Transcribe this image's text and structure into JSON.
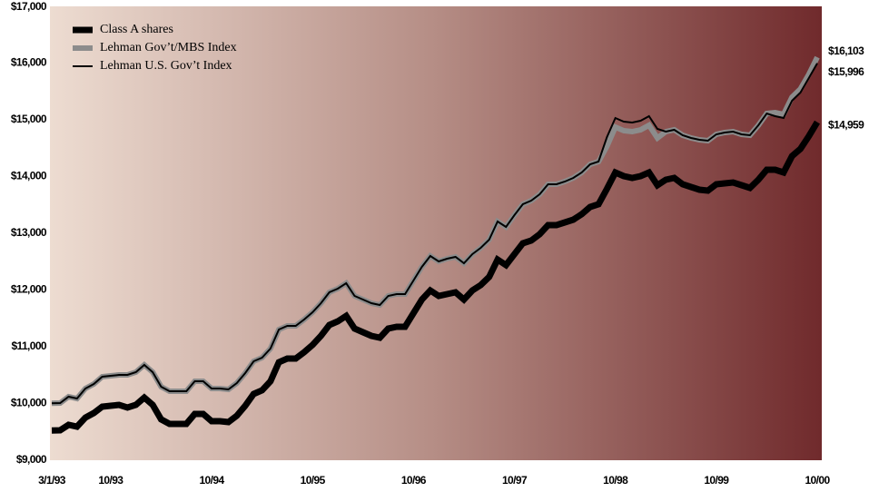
{
  "chart_data": {
    "type": "line",
    "categories": [
      "3/1/93",
      null,
      null,
      null,
      null,
      null,
      null,
      "10/93",
      null,
      null,
      null,
      null,
      null,
      null,
      null,
      null,
      null,
      null,
      null,
      "10/94",
      null,
      null,
      null,
      null,
      null,
      null,
      null,
      null,
      null,
      null,
      null,
      "10/95",
      null,
      null,
      null,
      null,
      null,
      null,
      null,
      null,
      null,
      null,
      null,
      "10/96",
      null,
      null,
      null,
      null,
      null,
      null,
      null,
      null,
      null,
      null,
      null,
      "10/97",
      null,
      null,
      null,
      null,
      null,
      null,
      null,
      null,
      null,
      null,
      null,
      "10/98",
      null,
      null,
      null,
      null,
      null,
      null,
      null,
      null,
      null,
      null,
      null,
      "10/99",
      null,
      null,
      null,
      null,
      null,
      null,
      null,
      null,
      null,
      null,
      null,
      "10/00"
    ],
    "series": [
      {
        "name": "Class A shares",
        "color": "#000000",
        "values": [
          9525,
          9528,
          9624,
          9592,
          9752,
          9832,
          9944,
          9960,
          9976,
          9928,
          9976,
          10104,
          9976,
          9720,
          9640,
          9640,
          9640,
          9816,
          9816,
          9688,
          9688,
          9672,
          9784,
          9960,
          10168,
          10232,
          10392,
          10728,
          10792,
          10792,
          10904,
          11032,
          11192,
          11384,
          11448,
          11544,
          11320,
          11256,
          11192,
          11160,
          11320,
          11352,
          11352,
          11592,
          11832,
          11992,
          11896,
          11928,
          11960,
          11832,
          11992,
          12088,
          12232,
          12536,
          12440,
          12632,
          12824,
          12872,
          12984,
          13144,
          13144,
          13192,
          13240,
          13336,
          13464,
          13512,
          13784,
          14072,
          14008,
          13976,
          14008,
          14072,
          13848,
          13944,
          13976,
          13864,
          13816,
          13768,
          13752,
          13864,
          13880,
          13896,
          13848,
          13800,
          13944,
          14120,
          14120,
          14072,
          14360,
          14488,
          14712,
          14959
        ],
        "value_labels": [
          null,
          null,
          null,
          null,
          null,
          null,
          null,
          null,
          null,
          null,
          null,
          null,
          null,
          null,
          null,
          null,
          null,
          null,
          null,
          null,
          null,
          null,
          null,
          null,
          null,
          null,
          null,
          null,
          null,
          null,
          null,
          null,
          null,
          null,
          null,
          null,
          null,
          null,
          null,
          null,
          null,
          null,
          null,
          null,
          null,
          null,
          null,
          null,
          null,
          null,
          null,
          null,
          null,
          null,
          null,
          null,
          null,
          null,
          null,
          null,
          null,
          null,
          null,
          null,
          null,
          null,
          null,
          null,
          null,
          null,
          null,
          null,
          null,
          null,
          null,
          null,
          null,
          null,
          null,
          null,
          null,
          null,
          null,
          null,
          null,
          null,
          null,
          null,
          null,
          null,
          null,
          "$14,959"
        ]
      },
      {
        "name": "Lehman Gov’t/MBS Index",
        "color": "#8c8c8c",
        "values": [
          10005,
          10008,
          10120,
          10088,
          10264,
          10344,
          10472,
          10488,
          10504,
          10504,
          10552,
          10680,
          10552,
          10296,
          10216,
          10216,
          10216,
          10392,
          10392,
          10264,
          10264,
          10248,
          10360,
          10536,
          10744,
          10808,
          10968,
          11304,
          11368,
          11368,
          11480,
          11608,
          11768,
          11960,
          12024,
          12120,
          11896,
          11832,
          11768,
          11736,
          11896,
          11928,
          11928,
          12168,
          12408,
          12600,
          12504,
          12552,
          12584,
          12472,
          12632,
          12744,
          12888,
          13208,
          13112,
          13320,
          13512,
          13576,
          13688,
          13864,
          13864,
          13912,
          13976,
          14072,
          14216,
          14264,
          14536,
          14872,
          14808,
          14792,
          14824,
          14904,
          14680,
          14792,
          14824,
          14728,
          14680,
          14648,
          14632,
          14744,
          14776,
          14792,
          14744,
          14728,
          14904,
          15112,
          15128,
          15096,
          15400,
          15544,
          15800,
          16103
        ],
        "value_labels": [
          null,
          null,
          null,
          null,
          null,
          null,
          null,
          null,
          null,
          null,
          null,
          null,
          null,
          null,
          null,
          null,
          null,
          null,
          null,
          null,
          null,
          null,
          null,
          null,
          null,
          null,
          null,
          null,
          null,
          null,
          null,
          null,
          null,
          null,
          null,
          null,
          null,
          null,
          null,
          null,
          null,
          null,
          null,
          null,
          null,
          null,
          null,
          null,
          null,
          null,
          null,
          null,
          null,
          null,
          null,
          null,
          null,
          null,
          null,
          null,
          null,
          null,
          null,
          null,
          null,
          null,
          null,
          null,
          null,
          null,
          null,
          null,
          null,
          null,
          null,
          null,
          null,
          null,
          null,
          null,
          null,
          null,
          null,
          null,
          null,
          null,
          null,
          null,
          null,
          null,
          null,
          "$16,103"
        ]
      },
      {
        "name": "Lehman U.S. Gov’t Index",
        "color": "#000000",
        "values": [
          10005,
          10008,
          10120,
          10088,
          10264,
          10344,
          10472,
          10488,
          10504,
          10504,
          10552,
          10680,
          10552,
          10296,
          10216,
          10216,
          10216,
          10392,
          10392,
          10264,
          10264,
          10248,
          10360,
          10536,
          10744,
          10808,
          10968,
          11304,
          11368,
          11368,
          11480,
          11608,
          11768,
          11960,
          12024,
          12120,
          11896,
          11832,
          11768,
          11736,
          11896,
          11928,
          11928,
          12168,
          12408,
          12600,
          12504,
          12552,
          12584,
          12472,
          12632,
          12744,
          12888,
          13208,
          13112,
          13320,
          13512,
          13576,
          13688,
          13864,
          13864,
          13912,
          13976,
          14072,
          14216,
          14264,
          14696,
          15032,
          14968,
          14952,
          14984,
          15064,
          14840,
          14792,
          14824,
          14728,
          14680,
          14648,
          14632,
          14744,
          14776,
          14792,
          14744,
          14728,
          14904,
          15112,
          15064,
          15032,
          15336,
          15480,
          15736,
          15996
        ],
        "value_labels": [
          null,
          null,
          null,
          null,
          null,
          null,
          null,
          null,
          null,
          null,
          null,
          null,
          null,
          null,
          null,
          null,
          null,
          null,
          null,
          null,
          null,
          null,
          null,
          null,
          null,
          null,
          null,
          null,
          null,
          null,
          null,
          null,
          null,
          null,
          null,
          null,
          null,
          null,
          null,
          null,
          null,
          null,
          null,
          null,
          null,
          null,
          null,
          null,
          null,
          null,
          null,
          null,
          null,
          null,
          null,
          null,
          null,
          null,
          null,
          null,
          null,
          null,
          null,
          null,
          null,
          null,
          null,
          null,
          null,
          null,
          null,
          null,
          null,
          null,
          null,
          null,
          null,
          null,
          null,
          null,
          null,
          null,
          null,
          null,
          null,
          null,
          null,
          null,
          null,
          null,
          null,
          "$15,996"
        ]
      }
    ],
    "ylim": [
      9000,
      17000
    ],
    "yticks": [
      {
        "value": 9000,
        "label": "$9,000"
      },
      {
        "value": 10000,
        "label": "$10,000"
      },
      {
        "value": 11000,
        "label": "$11,000"
      },
      {
        "value": 12000,
        "label": "$12,000"
      },
      {
        "value": 13000,
        "label": "$13,000"
      },
      {
        "value": 14000,
        "label": "$14,000"
      },
      {
        "value": 15000,
        "label": "$15,000"
      },
      {
        "value": 16000,
        "label": "$16,000"
      },
      {
        "value": 17000,
        "label": "$17,000"
      }
    ],
    "legend": "upper left"
  }
}
